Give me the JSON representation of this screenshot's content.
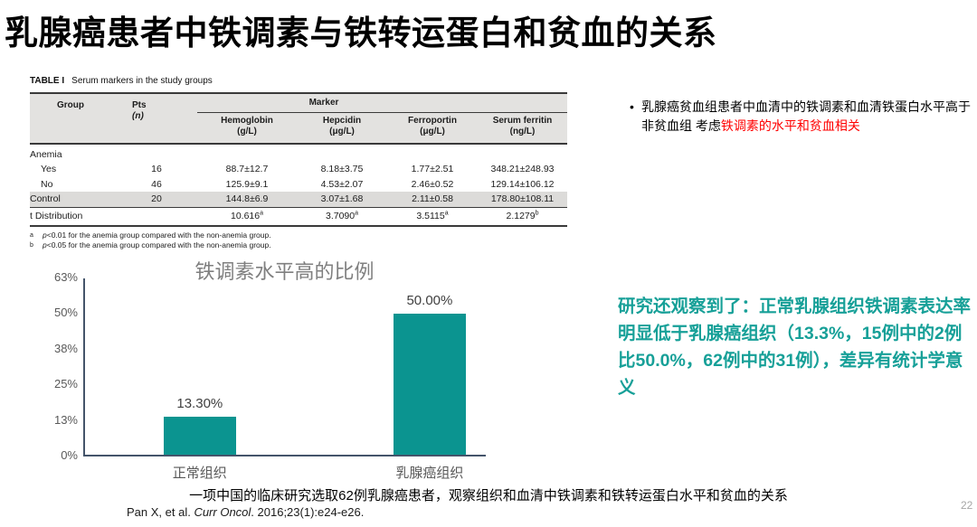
{
  "page": {
    "title": "乳腺癌患者中铁调素与铁转运蛋白和贫血的关系",
    "page_number": "22"
  },
  "table": {
    "caption_label": "TABLE I",
    "caption_text": "Serum markers in the study groups",
    "header": {
      "group": "Group",
      "pts": "Pts",
      "pts_unit": "(n)",
      "marker": "Marker",
      "cols": [
        {
          "name": "Hemoglobin",
          "unit": "(g/L)"
        },
        {
          "name": "Hepcidin",
          "unit": "(μg/L)"
        },
        {
          "name": "Ferroportin",
          "unit": "(μg/L)"
        },
        {
          "name": "Serum ferritin",
          "unit": "(ng/L)"
        }
      ]
    },
    "section": "Anemia",
    "rows": [
      {
        "c0": "Yes",
        "c1": "16",
        "c2": "88.7±12.7",
        "c3": "8.18±3.75",
        "c4": "1.77±2.51",
        "c5": "348.21±248.93"
      },
      {
        "c0": "No",
        "c1": "46",
        "c2": "125.9±9.1",
        "c3": "4.53±2.07",
        "c4": "2.46±0.52",
        "c5": "129.14±106.12"
      },
      {
        "c0": "Control",
        "c1": "20",
        "c2": "144.8±6.9",
        "c3": "3.07±1.68",
        "c4": "2.11±0.58",
        "c5": "178.80±108.11"
      },
      {
        "c0": "t Distribution",
        "c1": "",
        "c2": "10.616",
        "c2s": "a",
        "c3": "3.7090",
        "c3s": "a",
        "c4": "3.5115",
        "c4s": "a",
        "c5": "2.1279",
        "c5s": "b"
      }
    ],
    "footnotes": [
      {
        "sup": "a",
        "p": "p",
        "text": "<0.01 for the anemia group compared with the non-anemia group."
      },
      {
        "sup": "b",
        "p": "p",
        "text": "<0.05 for the anemia group compared with the non-anemia group."
      }
    ]
  },
  "bullet_note": {
    "marker": "•",
    "black_text": "乳腺癌贫血组患者中血清中的铁调素和血清铁蛋白水平高于非贫血组 考虑",
    "red_text": "铁调素的水平和贫血相关",
    "red_color": "#ff0000"
  },
  "key_finding": {
    "text": "研究还观察到了：正常乳腺组织铁调素表达率明显低于乳腺癌组织（13.3%，15例中的2例比50.0%，62例中的31例），差异有统计学意义",
    "color": "#17a098"
  },
  "chart_data": {
    "type": "bar",
    "title": "铁调素水平高的比例",
    "categories": [
      "正常组织",
      "乳腺癌组织"
    ],
    "values": [
      13.3,
      50.0
    ],
    "value_labels": [
      "13.30%",
      "50.00%"
    ],
    "ytick_labels": [
      "0%",
      "13%",
      "25%",
      "38%",
      "50%",
      "63%"
    ],
    "ylim": [
      0,
      63
    ],
    "xlabel": "",
    "ylabel": "",
    "grid": false,
    "legend": false,
    "bar_color": "#0b9490",
    "axis_color": "#44546a",
    "title_color": "#7f7f7f"
  },
  "footer": {
    "summary": "一项中国的临床研究选取62例乳腺癌患者，观察组织和血清中铁调素和铁转运蛋白水平和贫血的关系",
    "citation_prefix": "Pan X, et al. ",
    "citation_journal": "Curr Oncol",
    "citation_suffix": ". 2016;23(1):e24-e26."
  }
}
